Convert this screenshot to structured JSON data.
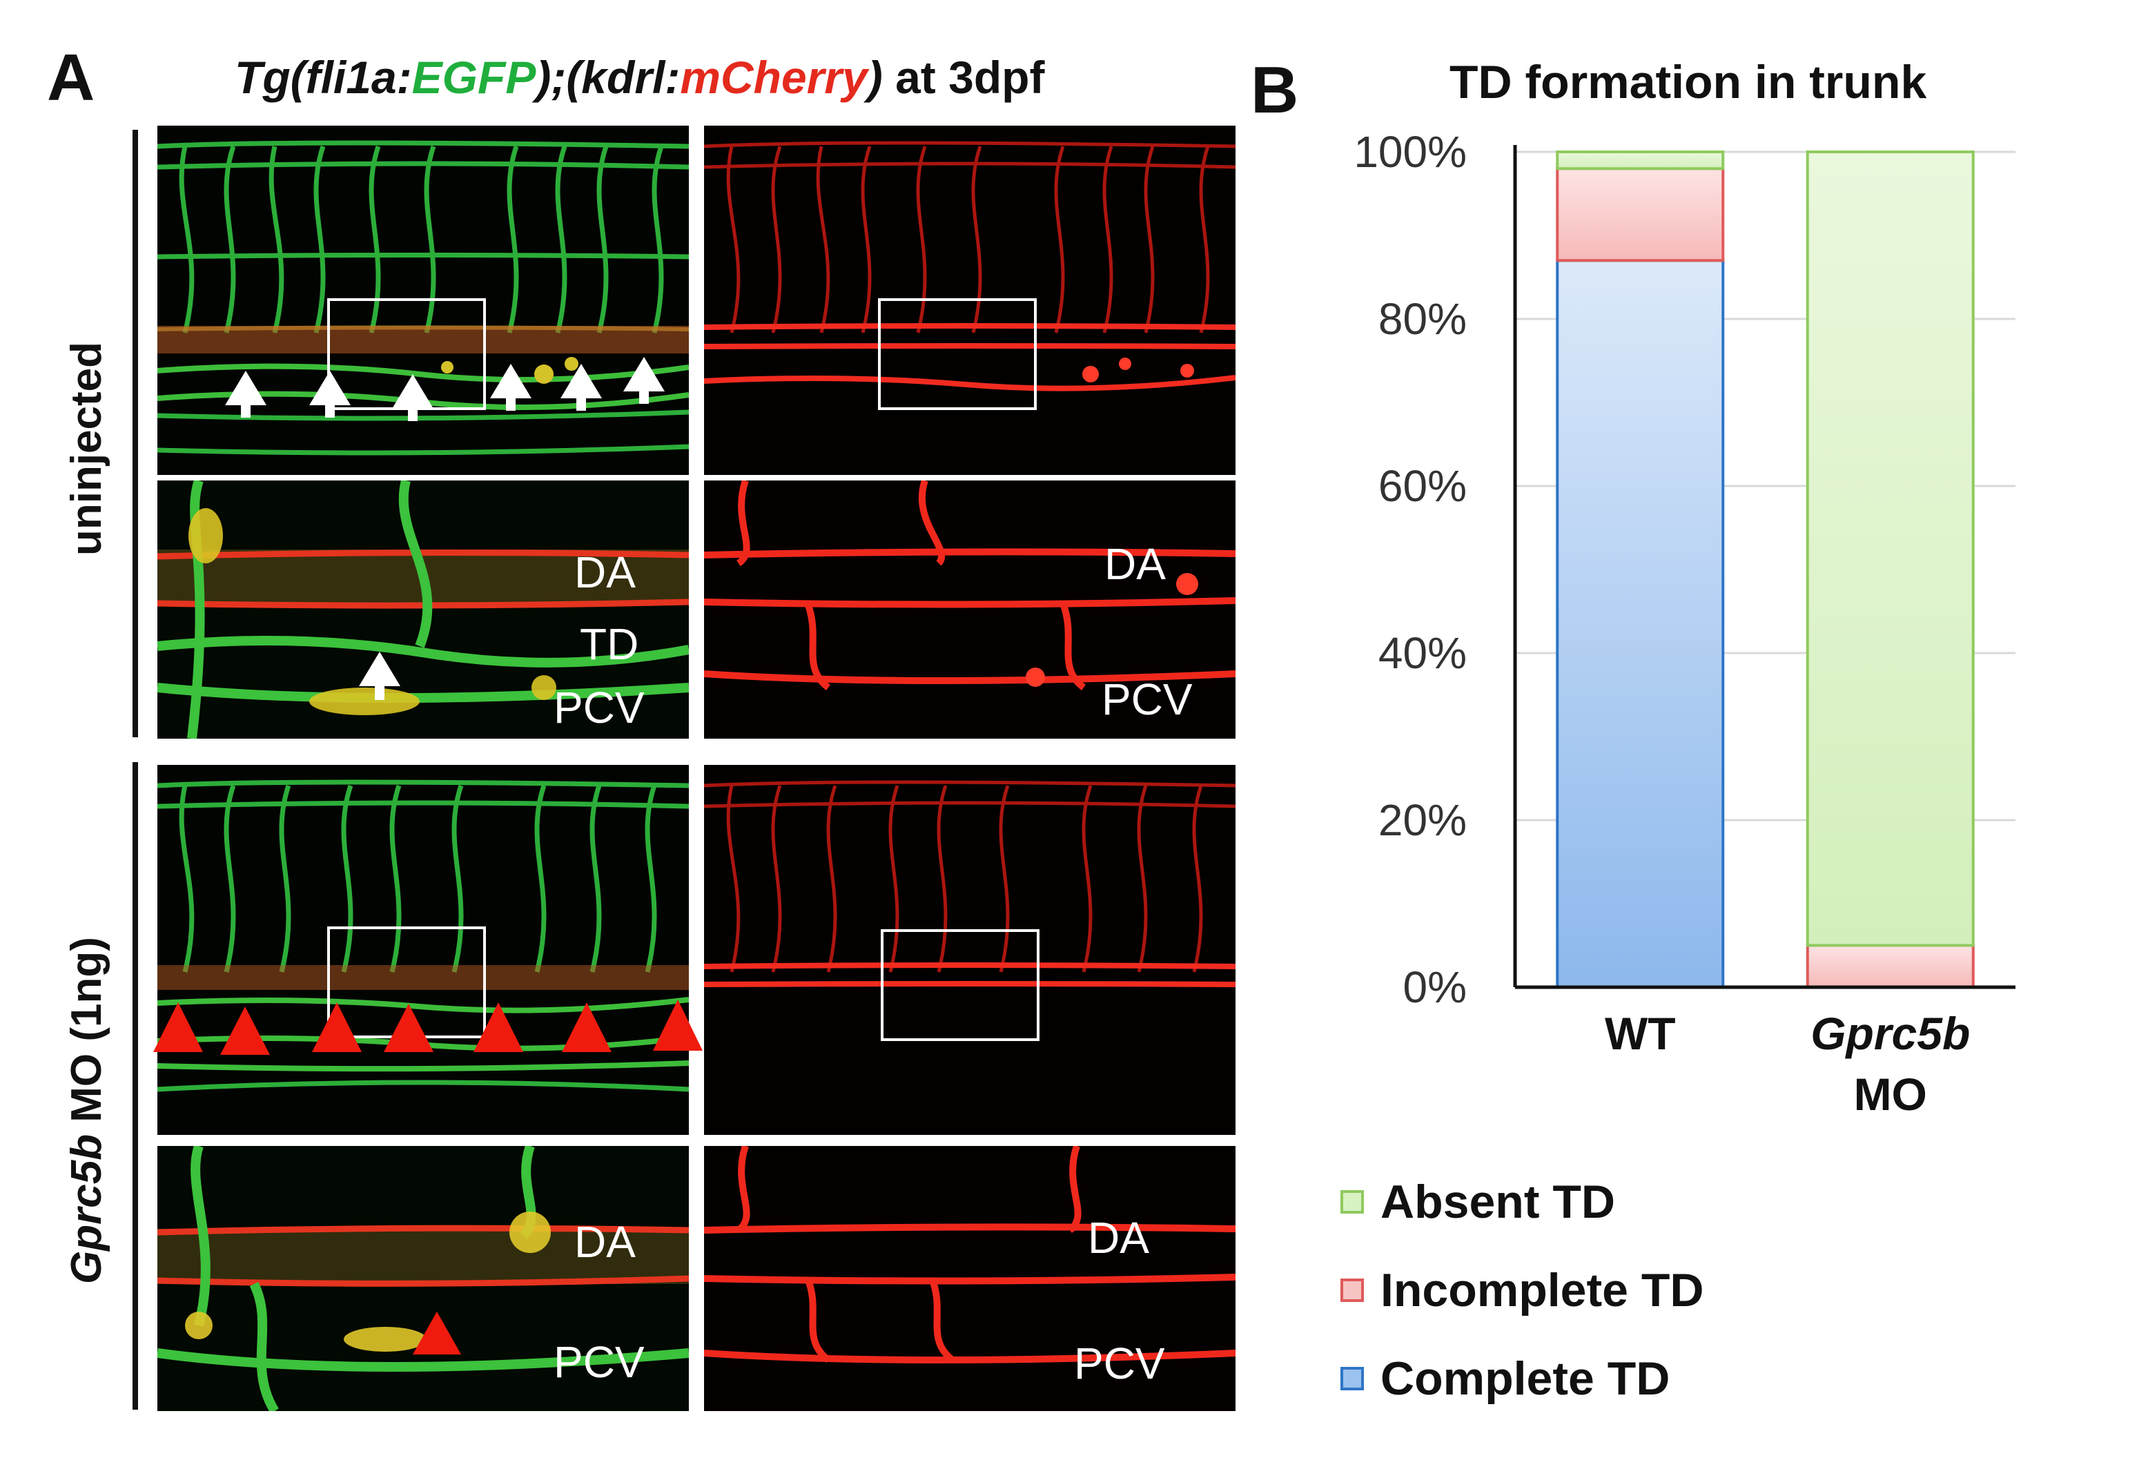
{
  "panel_a": {
    "letter": "A",
    "title_prefix": "Tg(fli1a:",
    "title_egfp": "EGFP",
    "title_mid": ");(kdrl:",
    "title_mcherry": "mCherry",
    "title_close": ")",
    "title_suffix": " at 3dpf",
    "row_uninjected": "uninjected",
    "row_mo_gene": "Gprc5b",
    "row_mo_rest": " MO (1ng)",
    "labels": {
      "da": "DA",
      "td": "TD",
      "pcv": "PCV"
    }
  },
  "panel_b": {
    "letter": "B"
  },
  "colors": {
    "complete": "#9cc3ef",
    "complete_border": "#2e75c6",
    "incomplete": "#f7c4c4",
    "incomplete_border": "#e05a5a",
    "absent": "#d9f2c4",
    "absent_border": "#8fca5e",
    "egfp": "#1fae3c",
    "mcherry": "#e42a1d"
  },
  "chart_data": {
    "type": "bar",
    "stacked": true,
    "title": "TD formation in trunk",
    "categories": [
      {
        "line1": "WT",
        "line2": "",
        "italic": ""
      },
      {
        "line1": "",
        "line2": "MO",
        "italic": "Gprc5b"
      }
    ],
    "series": [
      {
        "name": "Complete TD",
        "values": [
          87,
          0
        ]
      },
      {
        "name": "Incomplete TD",
        "values": [
          11,
          5
        ]
      },
      {
        "name": "Absent TD",
        "values": [
          2,
          95
        ]
      }
    ],
    "ylim": [
      0,
      100
    ],
    "yticks": [
      "0%",
      "20%",
      "40%",
      "60%",
      "80%",
      "100%"
    ],
    "legend": [
      {
        "label": "Absent TD",
        "key": "absent"
      },
      {
        "label": "Incomplete TD",
        "key": "incomplete"
      },
      {
        "label": "Complete TD",
        "key": "complete"
      }
    ],
    "legend_position": "bottom"
  }
}
